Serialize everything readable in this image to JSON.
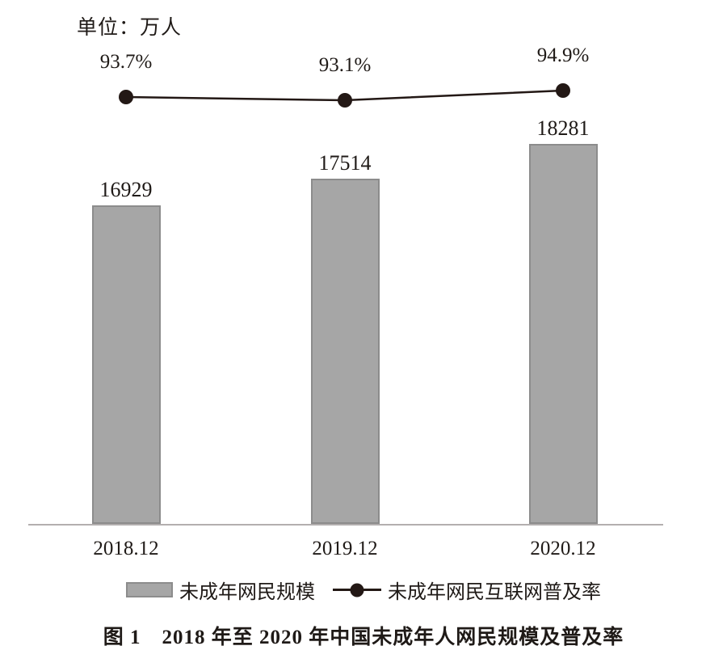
{
  "unit_label": "单位：万人",
  "caption": "图 1　2018 年至 2020 年中国未成年人网民规模及普及率",
  "legend": {
    "bar_label": "未成年网民规模",
    "line_label": "未成年网民互联网普及率"
  },
  "colors": {
    "bar_fill": "#a6a6a6",
    "bar_border": "#8c8c8c",
    "line": "#231815",
    "axis": "#b3afaf",
    "text": "#1f1a17"
  },
  "chart_data": {
    "type": "bar+line",
    "title": "图 1　2018 年至 2020 年中国未成年人网民规模及普及率",
    "unit_label": "单位：万人",
    "categories": [
      "2018.12",
      "2019.12",
      "2020.12"
    ],
    "series": [
      {
        "name": "未成年网民规模",
        "type": "bar",
        "unit": "万人",
        "values": [
          16929,
          17514,
          18281
        ],
        "labels": [
          "16929",
          "17514",
          "18281"
        ]
      },
      {
        "name": "未成年网民互联网普及率",
        "type": "line",
        "unit": "%",
        "values": [
          93.7,
          93.1,
          94.9
        ],
        "labels": [
          "93.7%",
          "93.1%",
          "94.9%"
        ]
      }
    ],
    "legend_position": "bottom",
    "grid": false,
    "value_axis_visible": false,
    "baseline_starts_at_zero": false
  }
}
